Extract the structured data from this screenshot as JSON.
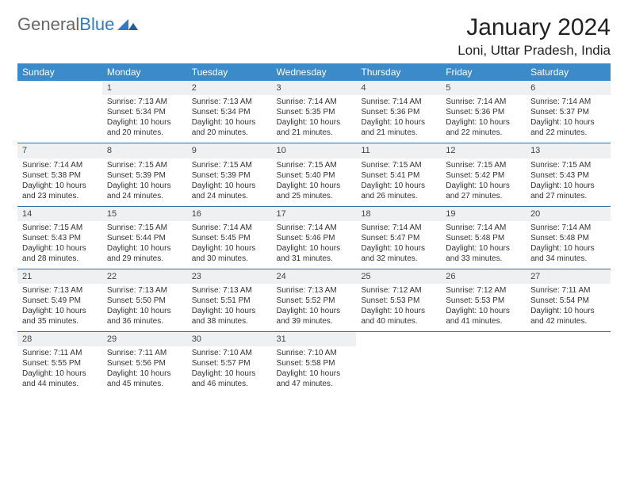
{
  "brand": {
    "part1": "General",
    "part2": "Blue"
  },
  "title": "January 2024",
  "location": "Loni, Uttar Pradesh, India",
  "weekday_header_bg": "#3b8bca",
  "weekday_header_fg": "#ffffff",
  "daynum_bg": "#eef0f1",
  "rule_color": "#2f6ea6",
  "weekdays": [
    "Sunday",
    "Monday",
    "Tuesday",
    "Wednesday",
    "Thursday",
    "Friday",
    "Saturday"
  ],
  "start_offset": 1,
  "days": [
    {
      "n": 1,
      "sr": "7:13 AM",
      "ss": "5:34 PM",
      "dl": "10 hours and 20 minutes."
    },
    {
      "n": 2,
      "sr": "7:13 AM",
      "ss": "5:34 PM",
      "dl": "10 hours and 20 minutes."
    },
    {
      "n": 3,
      "sr": "7:14 AM",
      "ss": "5:35 PM",
      "dl": "10 hours and 21 minutes."
    },
    {
      "n": 4,
      "sr": "7:14 AM",
      "ss": "5:36 PM",
      "dl": "10 hours and 21 minutes."
    },
    {
      "n": 5,
      "sr": "7:14 AM",
      "ss": "5:36 PM",
      "dl": "10 hours and 22 minutes."
    },
    {
      "n": 6,
      "sr": "7:14 AM",
      "ss": "5:37 PM",
      "dl": "10 hours and 22 minutes."
    },
    {
      "n": 7,
      "sr": "7:14 AM",
      "ss": "5:38 PM",
      "dl": "10 hours and 23 minutes."
    },
    {
      "n": 8,
      "sr": "7:15 AM",
      "ss": "5:39 PM",
      "dl": "10 hours and 24 minutes."
    },
    {
      "n": 9,
      "sr": "7:15 AM",
      "ss": "5:39 PM",
      "dl": "10 hours and 24 minutes."
    },
    {
      "n": 10,
      "sr": "7:15 AM",
      "ss": "5:40 PM",
      "dl": "10 hours and 25 minutes."
    },
    {
      "n": 11,
      "sr": "7:15 AM",
      "ss": "5:41 PM",
      "dl": "10 hours and 26 minutes."
    },
    {
      "n": 12,
      "sr": "7:15 AM",
      "ss": "5:42 PM",
      "dl": "10 hours and 27 minutes."
    },
    {
      "n": 13,
      "sr": "7:15 AM",
      "ss": "5:43 PM",
      "dl": "10 hours and 27 minutes."
    },
    {
      "n": 14,
      "sr": "7:15 AM",
      "ss": "5:43 PM",
      "dl": "10 hours and 28 minutes."
    },
    {
      "n": 15,
      "sr": "7:15 AM",
      "ss": "5:44 PM",
      "dl": "10 hours and 29 minutes."
    },
    {
      "n": 16,
      "sr": "7:14 AM",
      "ss": "5:45 PM",
      "dl": "10 hours and 30 minutes."
    },
    {
      "n": 17,
      "sr": "7:14 AM",
      "ss": "5:46 PM",
      "dl": "10 hours and 31 minutes."
    },
    {
      "n": 18,
      "sr": "7:14 AM",
      "ss": "5:47 PM",
      "dl": "10 hours and 32 minutes."
    },
    {
      "n": 19,
      "sr": "7:14 AM",
      "ss": "5:48 PM",
      "dl": "10 hours and 33 minutes."
    },
    {
      "n": 20,
      "sr": "7:14 AM",
      "ss": "5:48 PM",
      "dl": "10 hours and 34 minutes."
    },
    {
      "n": 21,
      "sr": "7:13 AM",
      "ss": "5:49 PM",
      "dl": "10 hours and 35 minutes."
    },
    {
      "n": 22,
      "sr": "7:13 AM",
      "ss": "5:50 PM",
      "dl": "10 hours and 36 minutes."
    },
    {
      "n": 23,
      "sr": "7:13 AM",
      "ss": "5:51 PM",
      "dl": "10 hours and 38 minutes."
    },
    {
      "n": 24,
      "sr": "7:13 AM",
      "ss": "5:52 PM",
      "dl": "10 hours and 39 minutes."
    },
    {
      "n": 25,
      "sr": "7:12 AM",
      "ss": "5:53 PM",
      "dl": "10 hours and 40 minutes."
    },
    {
      "n": 26,
      "sr": "7:12 AM",
      "ss": "5:53 PM",
      "dl": "10 hours and 41 minutes."
    },
    {
      "n": 27,
      "sr": "7:11 AM",
      "ss": "5:54 PM",
      "dl": "10 hours and 42 minutes."
    },
    {
      "n": 28,
      "sr": "7:11 AM",
      "ss": "5:55 PM",
      "dl": "10 hours and 44 minutes."
    },
    {
      "n": 29,
      "sr": "7:11 AM",
      "ss": "5:56 PM",
      "dl": "10 hours and 45 minutes."
    },
    {
      "n": 30,
      "sr": "7:10 AM",
      "ss": "5:57 PM",
      "dl": "10 hours and 46 minutes."
    },
    {
      "n": 31,
      "sr": "7:10 AM",
      "ss": "5:58 PM",
      "dl": "10 hours and 47 minutes."
    }
  ],
  "labels": {
    "sunrise": "Sunrise:",
    "sunset": "Sunset:",
    "daylight": "Daylight:"
  }
}
